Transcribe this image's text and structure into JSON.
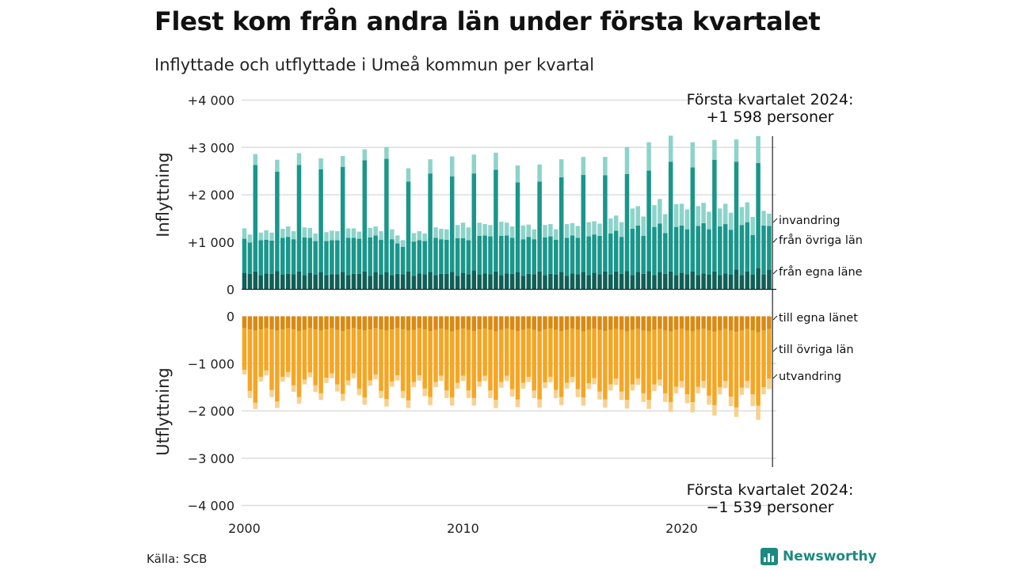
{
  "header": {
    "title": "Flest kom från andra län under första kvartalet",
    "subtitle": "Inflyttade och utflyttade i Umeå kommun per kvartal"
  },
  "footer": {
    "source": "Källa: SCB",
    "brand": "Newsworthy"
  },
  "colors": {
    "in_egna": "#0f5f57",
    "in_ovriga": "#1a968b",
    "in_invandring": "#8dd3ca",
    "ut_egna": "#d98a12",
    "ut_ovriga": "#f5a623",
    "ut_utvandring": "#f8d190",
    "grid": "#dddddd",
    "brand": "#1b8a80"
  },
  "annotations": {
    "top_line1": "Första kvartalet 2024:",
    "top_line2": "+1 598 personer",
    "bottom_line1": "Första kvartalet 2024:",
    "bottom_line2": "−1 539 personer"
  },
  "chart_data": {
    "type": "bar",
    "stacked": true,
    "ylabel_top": "Inflyttning",
    "ylabel_bottom": "Utflyttning",
    "ylim": [
      -4000,
      4000
    ],
    "yticks": [
      {
        "value": 4000,
        "label": "+4 000"
      },
      {
        "value": 3000,
        "label": "+3 000"
      },
      {
        "value": 2000,
        "label": "+2 000"
      },
      {
        "value": 1000,
        "label": "+1 000"
      },
      {
        "value": 0,
        "label": "0"
      },
      {
        "value": -1000,
        "label": "−1 000"
      },
      {
        "value": -2000,
        "label": "−2 000"
      },
      {
        "value": -3000,
        "label": "−3 000"
      },
      {
        "value": -4000,
        "label": "−4 000"
      }
    ],
    "xticks": [
      {
        "value": 2000,
        "label": "2000"
      },
      {
        "value": 2010,
        "label": "2010"
      },
      {
        "value": 2020,
        "label": "2020"
      }
    ],
    "x_start": 2000.0,
    "x_step": 0.25,
    "legend_in": [
      "invandring",
      "från övriga län",
      "från egna läne"
    ],
    "legend_out": [
      "till egna länet",
      "till övriga län",
      "utvandring"
    ],
    "series_in": [
      {
        "name": "från egna läne",
        "values": [
          350,
          330,
          380,
          300,
          340,
          330,
          390,
          310,
          330,
          320,
          380,
          300,
          350,
          310,
          360,
          300,
          320,
          320,
          370,
          300,
          330,
          330,
          380,
          290,
          360,
          310,
          360,
          300,
          330,
          320,
          380,
          290,
          340,
          320,
          370,
          300,
          330,
          330,
          370,
          290,
          350,
          320,
          400,
          310,
          340,
          320,
          380,
          300,
          340,
          330,
          360,
          290,
          330,
          320,
          380,
          300,
          330,
          310,
          370,
          290,
          340,
          320,
          370,
          300,
          350,
          320,
          380,
          310,
          380,
          330,
          390,
          300,
          370,
          330,
          390,
          300,
          360,
          330,
          380,
          300,
          350,
          320,
          380,
          300,
          340,
          310,
          380,
          300,
          340,
          310,
          420,
          300,
          380,
          310,
          450,
          310,
          410
        ]
      },
      {
        "name": "från övriga län",
        "values": [
          720,
          660,
          2250,
          740,
          710,
          700,
          2100,
          780,
          780,
          740,
          2250,
          800,
          740,
          710,
          2180,
          720,
          720,
          720,
          2220,
          790,
          760,
          740,
          2350,
          810,
          780,
          740,
          2400,
          760,
          640,
          580,
          1900,
          720,
          700,
          700,
          2080,
          790,
          730,
          720,
          2020,
          790,
          730,
          720,
          2050,
          820,
          800,
          800,
          2150,
          830,
          800,
          760,
          1900,
          770,
          780,
          740,
          1900,
          800,
          790,
          740,
          2000,
          800,
          800,
          770,
          2050,
          820,
          810,
          810,
          2030,
          870,
          860,
          780,
          2050,
          980,
          980,
          800,
          2120,
          1020,
          1030,
          860,
          2320,
          1020,
          1000,
          950,
          2200,
          1040,
          1060,
          960,
          2360,
          1030,
          1040,
          950,
          2280,
          1060,
          1040,
          840,
          2220,
          1040,
          930
        ]
      },
      {
        "name": "invandring",
        "values": [
          220,
          170,
          230,
          160,
          200,
          170,
          250,
          190,
          220,
          170,
          250,
          210,
          210,
          160,
          230,
          190,
          200,
          190,
          230,
          200,
          200,
          150,
          230,
          200,
          190,
          180,
          250,
          210,
          170,
          140,
          280,
          180,
          190,
          160,
          300,
          220,
          220,
          220,
          420,
          280,
          330,
          270,
          400,
          280,
          240,
          240,
          360,
          300,
          270,
          240,
          360,
          290,
          260,
          210,
          360,
          260,
          260,
          220,
          380,
          290,
          260,
          250,
          380,
          300,
          280,
          260,
          390,
          320,
          320,
          310,
          570,
          430,
          410,
          410,
          600,
          460,
          520,
          400,
          550,
          480,
          460,
          420,
          530,
          420,
          430,
          370,
          420,
          380,
          430,
          360,
          470,
          380,
          420,
          380,
          570,
          310,
          260
        ]
      }
    ],
    "series_out": [
      {
        "name": "till egna länet",
        "values": [
          -250,
          -280,
          -300,
          -280,
          -250,
          -280,
          -300,
          -280,
          -250,
          -280,
          -310,
          -290,
          -250,
          -280,
          -300,
          -280,
          -250,
          -290,
          -310,
          -280,
          -250,
          -280,
          -300,
          -280,
          -250,
          -280,
          -300,
          -280,
          -250,
          -280,
          -300,
          -290,
          -250,
          -280,
          -310,
          -290,
          -260,
          -290,
          -320,
          -290,
          -260,
          -290,
          -310,
          -280,
          -260,
          -290,
          -320,
          -290,
          -260,
          -290,
          -310,
          -290,
          -260,
          -290,
          -320,
          -280,
          -260,
          -290,
          -310,
          -290,
          -260,
          -290,
          -320,
          -290,
          -260,
          -290,
          -310,
          -290,
          -270,
          -290,
          -320,
          -290,
          -270,
          -300,
          -320,
          -290,
          -270,
          -300,
          -320,
          -290,
          -270,
          -300,
          -320,
          -290,
          -270,
          -300,
          -330,
          -300,
          -270,
          -300,
          -330,
          -300,
          -270,
          -300,
          -340,
          -300,
          -270
        ]
      },
      {
        "name": "till övriga län",
        "values": [
          -880,
          -1300,
          -1530,
          -1000,
          -900,
          -1280,
          -1500,
          -1000,
          -930,
          -1180,
          -1400,
          -1050,
          -940,
          -1180,
          -1330,
          -1020,
          -960,
          -1150,
          -1330,
          -1080,
          -960,
          -1250,
          -1420,
          -1080,
          -980,
          -1300,
          -1450,
          -1100,
          -1000,
          -1300,
          -1480,
          -1100,
          -1000,
          -1250,
          -1400,
          -1100,
          -1000,
          -1280,
          -1400,
          -1120,
          -1000,
          -1280,
          -1420,
          -1100,
          -1000,
          -1280,
          -1450,
          -1100,
          -1000,
          -1250,
          -1450,
          -1120,
          -1020,
          -1280,
          -1440,
          -1120,
          -1020,
          -1270,
          -1400,
          -1120,
          -1020,
          -1250,
          -1400,
          -1130,
          -1050,
          -1300,
          -1450,
          -1150,
          -1050,
          -1300,
          -1450,
          -1150,
          -1050,
          -1330,
          -1450,
          -1150,
          -1070,
          -1330,
          -1500,
          -1200,
          -1100,
          -1350,
          -1500,
          -1200,
          -1100,
          -1380,
          -1550,
          -1200,
          -1100,
          -1400,
          -1600,
          -1210,
          -1100,
          -1350,
          -1550,
          -1200,
          -1050
        ]
      },
      {
        "name": "utvandring",
        "values": [
          -100,
          -150,
          -130,
          -100,
          -100,
          -150,
          -140,
          -100,
          -110,
          -140,
          -140,
          -100,
          -100,
          -140,
          -140,
          -110,
          -100,
          -150,
          -150,
          -100,
          -100,
          -140,
          -150,
          -110,
          -100,
          -150,
          -160,
          -110,
          -110,
          -150,
          -160,
          -110,
          -110,
          -160,
          -170,
          -110,
          -110,
          -160,
          -170,
          -120,
          -110,
          -160,
          -160,
          -110,
          -110,
          -160,
          -170,
          -120,
          -110,
          -160,
          -160,
          -120,
          -110,
          -160,
          -170,
          -120,
          -120,
          -170,
          -170,
          -120,
          -120,
          -170,
          -170,
          -120,
          -130,
          -170,
          -170,
          -130,
          -130,
          -180,
          -180,
          -130,
          -130,
          -180,
          -190,
          -140,
          -130,
          -180,
          -200,
          -140,
          -140,
          -190,
          -210,
          -140,
          -150,
          -190,
          -220,
          -150,
          -150,
          -200,
          -200,
          -150,
          -150,
          -250,
          -300,
          -150,
          -220
        ]
      }
    ]
  }
}
